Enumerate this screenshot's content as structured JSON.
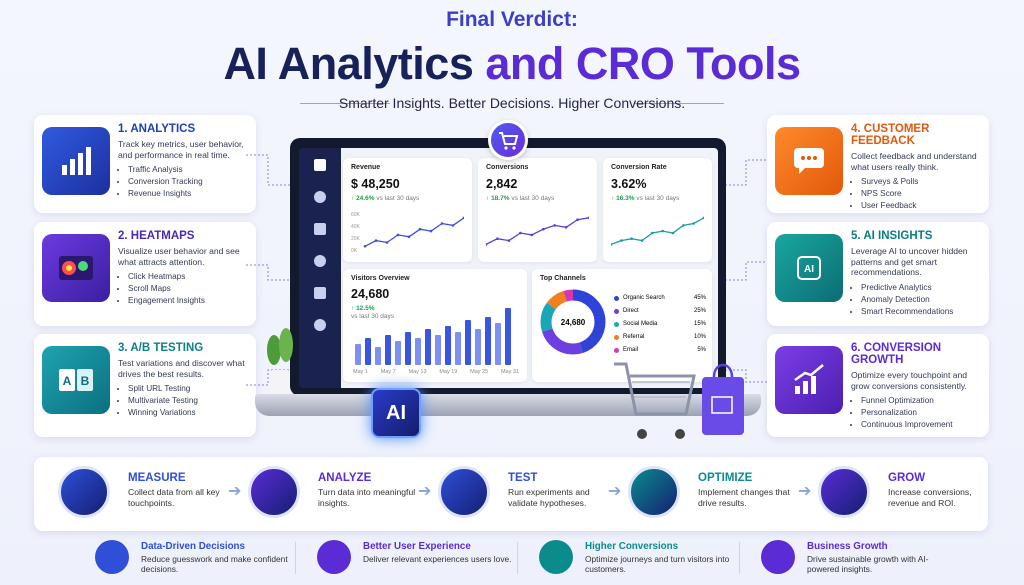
{
  "header": {
    "kicker": "Final Verdict:",
    "title_main": "AI Analytics",
    "title_accent": "and CRO Tools",
    "tagline": "Smarter Insights. Better Decisions. Higher Conversions."
  },
  "left_cards": [
    {
      "title": "1. ANALYTICS",
      "description": "Track key metrics, user behavior, and performance in real time.",
      "bullets": [
        "Traffic Analysis",
        "Conversion Tracking",
        "Revenue Insights"
      ]
    },
    {
      "title": "2. HEATMAPS",
      "description": "Visualize user behavior and see what attracts attention.",
      "bullets": [
        "Click Heatmaps",
        "Scroll Maps",
        "Engagement Insights"
      ]
    },
    {
      "title": "3. A/B TESTING",
      "description": "Test variations and discover what drives the best results.",
      "bullets": [
        "Split URL Testing",
        "Multivariate Testing",
        "Winning Variations"
      ]
    }
  ],
  "right_cards": [
    {
      "title": "4. CUSTOMER FEEDBACK",
      "description": "Collect feedback and understand what users really think.",
      "bullets": [
        "Surveys & Polls",
        "NPS Score",
        "User Feedback"
      ]
    },
    {
      "title": "5. AI INSIGHTS",
      "description": "Leverage AI to uncover hidden patterns and get smart recommendations.",
      "bullets": [
        "Predictive Analytics",
        "Anomaly Detection",
        "Smart Recommendations"
      ]
    },
    {
      "title": "6. CONVERSION GROWTH",
      "description": "Optimize every touchpoint and grow conversions consistently.",
      "bullets": [
        "Funnel Optimization",
        "Personalization",
        "Continuous Improvement"
      ]
    }
  ],
  "dashboard": {
    "kpis": [
      {
        "label": "Revenue",
        "value": "$ 48,250",
        "change": "24.6%",
        "note": "vs last 30 days"
      },
      {
        "label": "Conversions",
        "value": "2,842",
        "change": "18.7%",
        "note": "vs last 30 days"
      },
      {
        "label": "Conversion Rate",
        "value": "3.62%",
        "change": "16.3%",
        "note": "vs last 30 days"
      }
    ],
    "revenue_axis": [
      "60K",
      "40K",
      "20K",
      "0K"
    ],
    "visitors": {
      "title": "Visitors Overview",
      "value": "24,680",
      "change": "12.5%",
      "note": "vs last 30 days",
      "dates": [
        "May 1",
        "May 7",
        "May 13",
        "May 19",
        "May 25",
        "May 31"
      ]
    },
    "channels": {
      "title": "Top Channels",
      "total": "24,680",
      "items": [
        {
          "name": "Organic Search",
          "value": 45,
          "label": "45%"
        },
        {
          "name": "Direct",
          "value": 25,
          "label": "25%"
        },
        {
          "name": "Social Media",
          "value": 15,
          "label": "15%"
        },
        {
          "name": "Referral",
          "value": 10,
          "label": "10%"
        },
        {
          "name": "Email",
          "value": 5,
          "label": "5%"
        }
      ]
    },
    "chip": "AI"
  },
  "process": [
    {
      "title": "MEASURE",
      "description": "Collect data from all key touchpoints."
    },
    {
      "title": "ANALYZE",
      "description": "Turn data into meaningful insights."
    },
    {
      "title": "TEST",
      "description": "Run experiments and validate hypotheses."
    },
    {
      "title": "OPTIMIZE",
      "description": "Implement changes that drive results."
    },
    {
      "title": "GROW",
      "description": "Increase conversions, revenue and ROI."
    }
  ],
  "benefits": [
    {
      "title": "Data-Driven Decisions",
      "description": "Reduce guesswork and make confident decisions."
    },
    {
      "title": "Better User Experience",
      "description": "Deliver relevant experiences users love."
    },
    {
      "title": "Higher Conversions",
      "description": "Optimize journeys and turn visitors into customers."
    },
    {
      "title": "Business Growth",
      "description": "Drive sustainable growth with AI-powered insights."
    }
  ]
}
